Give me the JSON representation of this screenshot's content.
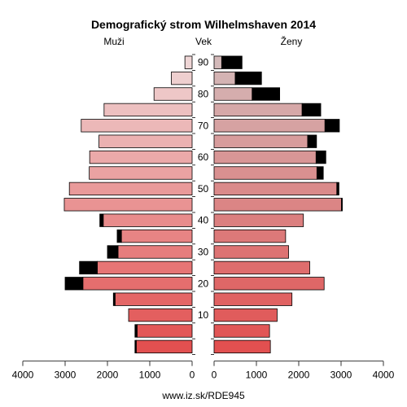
{
  "chart_data": {
    "type": "bar",
    "title": "Demografický strom Wilhelmshaven 2014",
    "left_label": "Muži",
    "center_label": "Vek",
    "right_label": "Ženy",
    "source": "www.iz.sk/RDE945",
    "xlim": [
      0,
      4000
    ],
    "x_ticks": [
      0,
      1000,
      2000,
      3000,
      4000
    ],
    "age_ticks": [
      10,
      20,
      30,
      40,
      50,
      60,
      70,
      80,
      90
    ],
    "age_groups": [
      "0-4",
      "5-9",
      "10-14",
      "15-19",
      "20-24",
      "25-29",
      "30-34",
      "35-39",
      "40-44",
      "45-49",
      "50-54",
      "55-59",
      "60-64",
      "65-69",
      "70-74",
      "75-79",
      "80-84",
      "85-89",
      "90+"
    ],
    "series": [
      {
        "name": "Muži",
        "values": [
          1320,
          1300,
          1500,
          1820,
          2580,
          2240,
          1750,
          1670,
          2100,
          3020,
          2900,
          2430,
          2420,
          2200,
          2620,
          2080,
          900,
          490,
          170
        ],
        "surplus": [
          30,
          50,
          0,
          40,
          420,
          420,
          250,
          100,
          80,
          0,
          0,
          0,
          0,
          0,
          0,
          0,
          0,
          0,
          0
        ]
      },
      {
        "name": "Ženy",
        "values": [
          1330,
          1310,
          1490,
          1840,
          2600,
          2260,
          1760,
          1690,
          2110,
          3010,
          2900,
          2430,
          2410,
          2210,
          2620,
          2080,
          900,
          500,
          180
        ],
        "surplus": [
          0,
          0,
          0,
          0,
          0,
          0,
          0,
          0,
          0,
          20,
          50,
          150,
          230,
          210,
          340,
          440,
          650,
          620,
          480
        ]
      }
    ],
    "colors": {
      "male_young": "#e25050",
      "male_old": "#efd6d6",
      "female_young": "#e25050",
      "female_old": "#d3b9b9",
      "surplus": "#000000",
      "outline": "#000000"
    }
  }
}
